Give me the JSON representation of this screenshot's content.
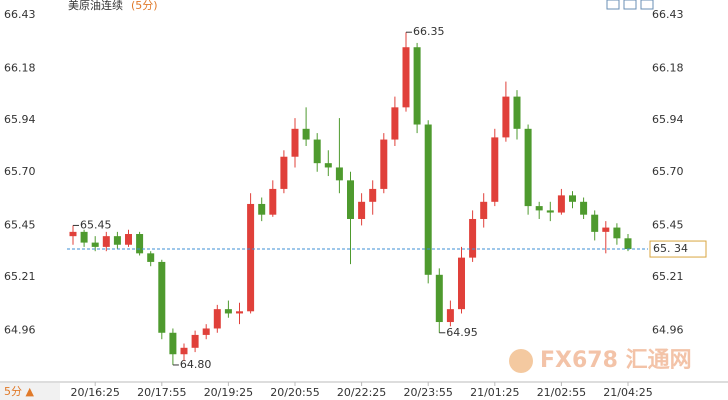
{
  "chart_data": {
    "type": "candlestick",
    "title": "美原油连续",
    "subtitle": "(5分)",
    "period_button": "5分 ▲",
    "watermark": "FX678 汇通网",
    "categories": [
      null,
      null,
      "20/16:25",
      null,
      null,
      null,
      null,
      null,
      "20/17:55",
      null,
      null,
      null,
      null,
      null,
      "20/19:25",
      null,
      null,
      null,
      null,
      null,
      "20/20:55",
      null,
      null,
      null,
      null,
      null,
      "20/22:25",
      null,
      null,
      null,
      null,
      null,
      "20/23:55",
      null,
      null,
      null,
      null,
      null,
      "21/01:25",
      null,
      null,
      null,
      null,
      null,
      "21/02:55",
      null,
      null,
      null,
      null,
      null,
      "21/04:25"
    ],
    "open": [
      65.4,
      65.42,
      65.37,
      65.35,
      65.4,
      65.36,
      65.41,
      65.32,
      65.28,
      64.95,
      64.85,
      64.88,
      64.94,
      64.97,
      65.06,
      65.04,
      65.05,
      65.55,
      65.5,
      65.62,
      65.77,
      65.9,
      65.85,
      65.74,
      65.72,
      65.66,
      65.48,
      65.56,
      65.62,
      65.85,
      66.0,
      66.28,
      65.92,
      65.22,
      65.0,
      65.06,
      65.3,
      65.48,
      65.56,
      65.86,
      66.05,
      65.9,
      65.54,
      65.52,
      65.51,
      65.59,
      65.56,
      65.5,
      65.42,
      65.44,
      65.39
    ],
    "high": [
      65.45,
      65.43,
      65.4,
      65.42,
      65.42,
      65.43,
      65.42,
      65.33,
      65.29,
      64.97,
      64.9,
      64.96,
      64.99,
      65.08,
      65.1,
      65.09,
      65.6,
      65.58,
      65.66,
      65.8,
      65.95,
      66.0,
      65.88,
      65.8,
      65.95,
      65.7,
      65.6,
      65.66,
      65.88,
      66.05,
      66.35,
      66.3,
      65.94,
      65.25,
      65.1,
      65.35,
      65.52,
      65.6,
      65.9,
      66.12,
      66.08,
      65.92,
      65.56,
      65.56,
      65.62,
      65.61,
      65.58,
      65.52,
      65.47,
      65.46,
      65.41
    ],
    "low": [
      65.36,
      65.35,
      65.33,
      65.33,
      65.34,
      65.35,
      65.31,
      65.26,
      64.92,
      64.8,
      64.82,
      64.86,
      64.92,
      64.95,
      65.02,
      64.99,
      65.04,
      65.47,
      65.49,
      65.6,
      65.72,
      65.82,
      65.7,
      65.68,
      65.6,
      65.27,
      65.45,
      65.5,
      65.6,
      65.82,
      65.98,
      65.88,
      65.18,
      64.95,
      64.98,
      65.04,
      65.28,
      65.44,
      65.54,
      65.84,
      65.85,
      65.5,
      65.48,
      65.47,
      65.5,
      65.53,
      65.48,
      65.38,
      65.32,
      65.36,
      65.33
    ],
    "close": [
      65.42,
      65.37,
      65.35,
      65.4,
      65.36,
      65.41,
      65.32,
      65.28,
      64.95,
      64.85,
      64.88,
      64.94,
      64.97,
      65.06,
      65.04,
      65.05,
      65.55,
      65.5,
      65.62,
      65.77,
      65.9,
      65.85,
      65.74,
      65.72,
      65.66,
      65.48,
      65.56,
      65.62,
      65.85,
      66.0,
      66.28,
      65.92,
      65.22,
      65.0,
      65.06,
      65.3,
      65.48,
      65.56,
      65.86,
      66.05,
      65.9,
      65.54,
      65.52,
      65.51,
      65.59,
      65.56,
      65.5,
      65.42,
      65.44,
      65.39,
      65.34
    ],
    "high_labels": [
      "65.45",
      null,
      null,
      null,
      null,
      null,
      null,
      null,
      null,
      null,
      null,
      null,
      null,
      null,
      null,
      null,
      null,
      null,
      null,
      null,
      null,
      null,
      null,
      null,
      null,
      null,
      null,
      null,
      null,
      null,
      "66.35",
      null,
      null,
      null,
      null,
      null,
      null,
      null,
      null,
      null,
      null,
      null,
      null,
      null,
      null,
      null,
      null,
      null,
      null,
      null,
      null
    ],
    "low_labels": [
      null,
      null,
      null,
      null,
      null,
      null,
      null,
      null,
      null,
      "64.80",
      null,
      null,
      null,
      null,
      null,
      null,
      null,
      null,
      null,
      null,
      null,
      null,
      null,
      null,
      null,
      null,
      null,
      null,
      null,
      null,
      null,
      null,
      null,
      "64.95",
      null,
      null,
      null,
      null,
      null,
      null,
      null,
      null,
      null,
      null,
      null,
      null,
      null,
      null,
      null,
      null,
      null
    ],
    "up_color": "#e0403a",
    "down_color": "#4e9a2e",
    "last_price": {
      "value": 65.34,
      "label": "65. 34"
    },
    "last_price_color": "#3c8fd6",
    "ylim": [
      64.73,
      66.5
    ],
    "yticks": [
      64.96,
      65.21,
      65.45,
      {
        "value": 65.7,
        "label": "65.70"
      },
      65.94,
      66.18,
      66.43
    ]
  }
}
